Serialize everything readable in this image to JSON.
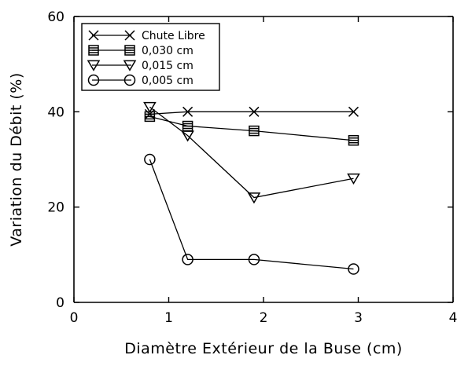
{
  "chart_data": {
    "type": "line",
    "xlabel": "Diamètre Extérieur de la Buse (cm)",
    "ylabel": "Variation du Débit (%)",
    "xlim": [
      0,
      4
    ],
    "ylim": [
      0,
      60
    ],
    "x_ticks": [
      0,
      1,
      2,
      3,
      4
    ],
    "y_ticks": [
      0,
      20,
      40,
      60
    ],
    "x_tick_labels": [
      "0",
      "1",
      "2",
      "3",
      "4"
    ],
    "y_tick_labels": [
      "0",
      "20",
      "40",
      "60"
    ],
    "grid": false,
    "legend_position": "top-left",
    "series": [
      {
        "name": "Chute Libre",
        "marker": "x",
        "x": [
          0.8,
          1.2,
          1.9,
          2.95
        ],
        "y": [
          39.5,
          40,
          40,
          40
        ]
      },
      {
        "name": "0,030 cm",
        "marker": "square-hatched",
        "x": [
          0.8,
          1.2,
          1.9,
          2.95
        ],
        "y": [
          39,
          37,
          36,
          34
        ]
      },
      {
        "name": "0,015 cm",
        "marker": "triangle-down",
        "x": [
          0.8,
          1.2,
          1.9,
          2.95
        ],
        "y": [
          41,
          35,
          22,
          26
        ]
      },
      {
        "name": "0,005 cm",
        "marker": "circle",
        "x": [
          0.8,
          1.2,
          1.9,
          2.95
        ],
        "y": [
          30,
          9,
          9,
          7
        ]
      }
    ]
  }
}
